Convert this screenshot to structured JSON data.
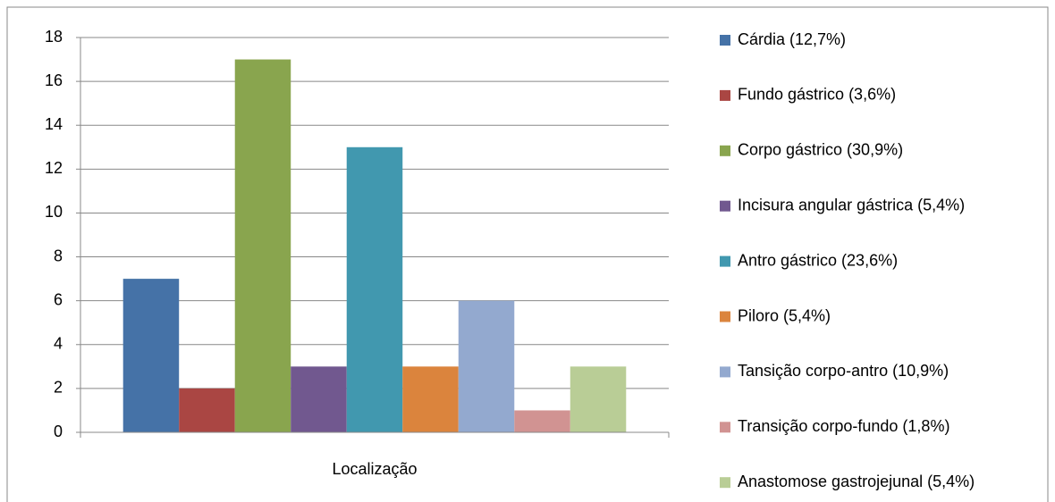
{
  "chart_data": {
    "type": "bar",
    "categories": [
      "Localização"
    ],
    "series": [
      {
        "name": "Cárdia (12,7%)",
        "color": "#4572A7",
        "values": [
          7
        ]
      },
      {
        "name": "Fundo gástrico (3,6%)",
        "color": "#AA4643",
        "values": [
          2
        ]
      },
      {
        "name": "Corpo gástrico (30,9%)",
        "color": "#89A54E",
        "values": [
          17
        ]
      },
      {
        "name": "Incisura angular gástrica (5,4%)",
        "color": "#71588F",
        "values": [
          3
        ]
      },
      {
        "name": "Antro gástrico (23,6%)",
        "color": "#4198AF",
        "values": [
          13
        ]
      },
      {
        "name": "Piloro (5,4%)",
        "color": "#DB843D",
        "values": [
          3
        ]
      },
      {
        "name": "Tansição corpo-antro (10,9%)",
        "color": "#93A9CF",
        "values": [
          6
        ]
      },
      {
        "name": "Transição corpo-fundo (1,8%)",
        "color": "#D19392",
        "values": [
          1
        ]
      },
      {
        "name": "Anastomose gastrojejunal (5,4%)",
        "color": "#B9CD96",
        "values": [
          3
        ]
      }
    ],
    "ylim": [
      0,
      18
    ],
    "yticks": [
      0,
      2,
      4,
      6,
      8,
      10,
      12,
      14,
      16,
      18
    ],
    "grid": true,
    "legend": "right"
  }
}
